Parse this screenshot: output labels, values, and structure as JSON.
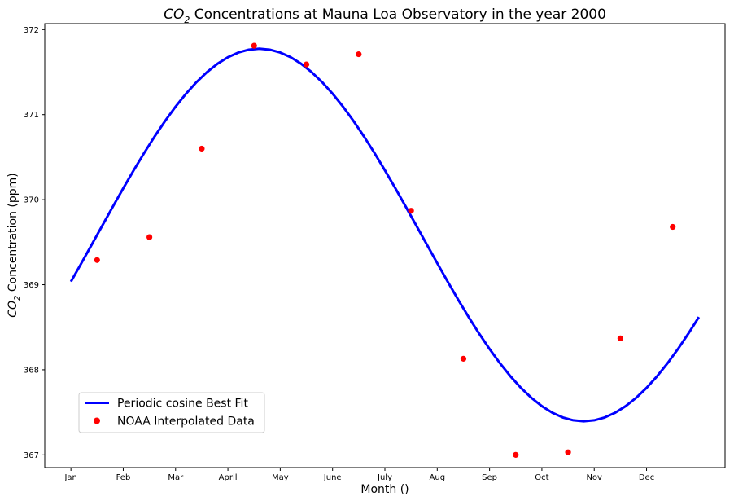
{
  "chart_data": {
    "type": "line",
    "title": {
      "prefix": "CO",
      "subscript": "2",
      "suffix": " Concentrations at Mauna Loa Observatory in the year 2000"
    },
    "xlabel": "Month ()",
    "ylabel": {
      "prefix": "CO",
      "subscript": "2",
      "suffix": " Concentration (ppm)"
    },
    "xlim": [
      -0.5,
      12.5
    ],
    "ylim": [
      366.85,
      372.07
    ],
    "x_ticks": [
      {
        "value": 0,
        "label": "Jan"
      },
      {
        "value": 1,
        "label": "Feb"
      },
      {
        "value": 2,
        "label": "Mar"
      },
      {
        "value": 3,
        "label": "April"
      },
      {
        "value": 4,
        "label": "May"
      },
      {
        "value": 5,
        "label": "June"
      },
      {
        "value": 6,
        "label": "July"
      },
      {
        "value": 7,
        "label": "Aug"
      },
      {
        "value": 8,
        "label": "Sep"
      },
      {
        "value": 9,
        "label": "Oct"
      },
      {
        "value": 10,
        "label": "Nov"
      },
      {
        "value": 11,
        "label": "Dec"
      }
    ],
    "y_ticks": [
      367,
      368,
      369,
      370,
      371,
      372
    ],
    "grid": false,
    "legend_position": "lower-left",
    "series": [
      {
        "name": "Periodic cosine Best Fit",
        "kind": "line",
        "color": "#0000ff",
        "model": {
          "form": "cosine",
          "offset": 369.585,
          "amplitude": 2.19,
          "period": 12.4,
          "phase_x": 3.6
        },
        "x_range": [
          0,
          12
        ],
        "samples": 60
      },
      {
        "name": "NOAA Interpolated Data",
        "kind": "scatter",
        "color": "#ff0000",
        "points": [
          {
            "x": 0.5,
            "y": 369.29
          },
          {
            "x": 1.5,
            "y": 369.56
          },
          {
            "x": 2.5,
            "y": 370.6
          },
          {
            "x": 3.5,
            "y": 371.81
          },
          {
            "x": 4.5,
            "y": 371.59
          },
          {
            "x": 5.5,
            "y": 371.71
          },
          {
            "x": 6.5,
            "y": 369.87
          },
          {
            "x": 7.5,
            "y": 368.13
          },
          {
            "x": 8.5,
            "y": 367.0
          },
          {
            "x": 9.5,
            "y": 367.03
          },
          {
            "x": 10.5,
            "y": 368.37
          },
          {
            "x": 11.5,
            "y": 369.68
          }
        ]
      }
    ]
  }
}
